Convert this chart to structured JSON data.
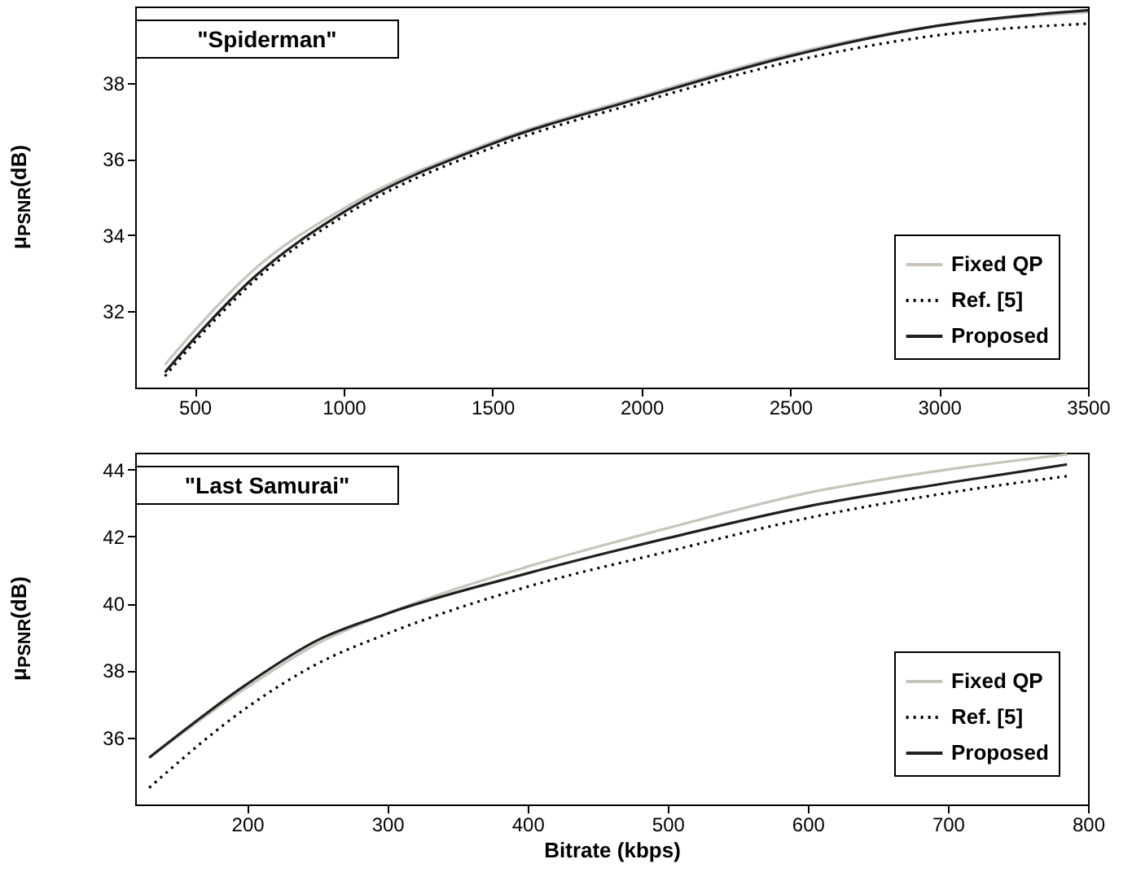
{
  "chart_data": [
    {
      "type": "line",
      "ylabel": "μ$_{PSNR}$(dB)",
      "annotations": [
        "\"Spiderman\""
      ],
      "xlim": [
        300,
        3500
      ],
      "xticks": [
        500,
        1000,
        1500,
        2000,
        2500,
        3000,
        3500
      ],
      "ylim": [
        30,
        40
      ],
      "yticks": [
        32,
        34,
        36,
        38
      ],
      "grid": false,
      "legend": "bottom right",
      "series": [
        {
          "name": "Fixed QP",
          "color": "#c8c4bc",
          "line_style": "solid",
          "x": [
            400,
            500,
            700,
            1000,
            1500,
            2000,
            2500,
            3000,
            3500
          ],
          "values": [
            30.6,
            31.5,
            33.1,
            34.7,
            36.45,
            37.65,
            38.75,
            39.5,
            39.85
          ]
        },
        {
          "name": "Ref. [5]",
          "color": "#000000",
          "line_style": "dotted",
          "x": [
            400,
            500,
            700,
            1000,
            1500,
            2000,
            2500,
            3000,
            3500
          ],
          "values": [
            30.3,
            31.2,
            32.8,
            34.5,
            36.3,
            37.5,
            38.55,
            39.25,
            39.55
          ]
        },
        {
          "name": "Proposed",
          "color": "#202020",
          "line_style": "solid",
          "x": [
            400,
            500,
            700,
            1000,
            1500,
            2000,
            2500,
            3000,
            3500
          ],
          "values": [
            30.4,
            31.3,
            32.9,
            34.6,
            36.4,
            37.6,
            38.7,
            39.5,
            39.9
          ]
        }
      ]
    },
    {
      "type": "line",
      "xlabel": "Bitrate (kbps)",
      "ylabel": "μ$_{PSNR}$(dB)",
      "annotations": [
        "\"Last Samurai\""
      ],
      "xlim": [
        120,
        800
      ],
      "xticks": [
        200,
        300,
        400,
        500,
        600,
        700,
        800
      ],
      "ylim": [
        34,
        44.5
      ],
      "yticks": [
        36,
        38,
        40,
        42,
        44
      ],
      "grid": false,
      "legend": "bottom right",
      "series": [
        {
          "name": "Fixed QP",
          "color": "#c8c4bc",
          "line_style": "solid",
          "x": [
            130,
            200,
            250,
            300,
            400,
            500,
            600,
            700,
            785
          ],
          "values": [
            35.4,
            37.5,
            38.8,
            39.7,
            41.1,
            42.25,
            43.3,
            44.0,
            44.45
          ]
        },
        {
          "name": "Ref. [5]",
          "color": "#000000",
          "line_style": "dotted",
          "x": [
            130,
            200,
            250,
            300,
            400,
            500,
            600,
            700,
            785
          ],
          "values": [
            34.5,
            36.9,
            38.2,
            39.1,
            40.5,
            41.55,
            42.55,
            43.3,
            43.8
          ]
        },
        {
          "name": "Proposed",
          "color": "#202020",
          "line_style": "solid",
          "x": [
            130,
            200,
            250,
            300,
            400,
            500,
            600,
            700,
            785
          ],
          "values": [
            35.4,
            37.6,
            38.9,
            39.7,
            40.9,
            41.95,
            42.9,
            43.6,
            44.15
          ]
        }
      ]
    }
  ]
}
